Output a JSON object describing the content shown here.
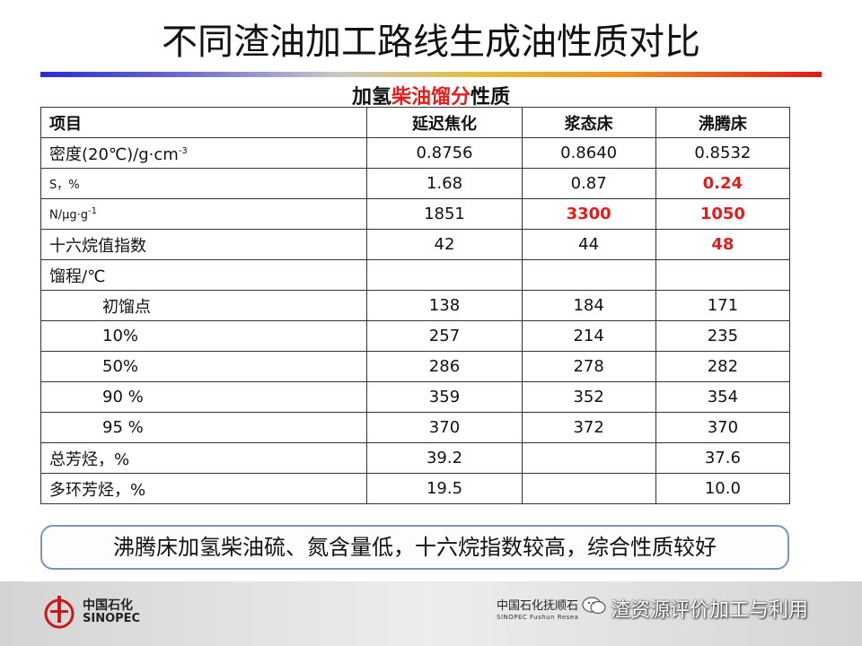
{
  "title": "不同渣油加工路线生成油性质对比",
  "subtitle": {
    "pre": "加氢",
    "highlight": "柴油馏分",
    "post": "性质"
  },
  "table": {
    "headers": [
      "项目",
      "延迟焦化",
      "浆态床",
      "沸腾床"
    ],
    "rows": [
      {
        "label": "密度(20℃)/g·cm",
        "sup": "-3",
        "values": [
          "0.8756",
          "0.8640",
          "0.8532"
        ],
        "highlight": [
          false,
          false,
          false
        ]
      },
      {
        "label": "S，%",
        "values": [
          "1.68",
          "0.87",
          "0.24"
        ],
        "highlight": [
          false,
          false,
          true
        ],
        "small": true
      },
      {
        "label": "N/μg·g",
        "sup": "-1",
        "values": [
          "1851",
          "3300",
          "1050"
        ],
        "highlight": [
          false,
          true,
          true
        ],
        "small": true
      },
      {
        "label": "十六烷值指数",
        "values": [
          "42",
          "44",
          "48"
        ],
        "highlight": [
          false,
          false,
          true
        ]
      },
      {
        "label": "馏程/℃",
        "values": [
          "",
          "",
          ""
        ],
        "highlight": [
          false,
          false,
          false
        ]
      },
      {
        "label": "初馏点",
        "indent": true,
        "values": [
          "138",
          "184",
          "171"
        ],
        "highlight": [
          false,
          false,
          false
        ]
      },
      {
        "label": "10%",
        "indent": true,
        "values": [
          "257",
          "214",
          "235"
        ],
        "highlight": [
          false,
          false,
          false
        ]
      },
      {
        "label": "50%",
        "indent": true,
        "values": [
          "286",
          "278",
          "282"
        ],
        "highlight": [
          false,
          false,
          false
        ]
      },
      {
        "label": "90 %",
        "indent": true,
        "values": [
          "359",
          "352",
          "354"
        ],
        "highlight": [
          false,
          false,
          false
        ]
      },
      {
        "label": "95 %",
        "indent": true,
        "values": [
          "370",
          "372",
          "370"
        ],
        "highlight": [
          false,
          false,
          false
        ]
      },
      {
        "label": "总芳烃，%",
        "values": [
          "39.2",
          "",
          "37.6"
        ],
        "highlight": [
          false,
          false,
          false
        ]
      },
      {
        "label": "多环芳烃，%",
        "values": [
          "19.5",
          "",
          "10.0"
        ],
        "highlight": [
          false,
          false,
          false
        ]
      }
    ]
  },
  "note": "沸腾床加氢柴油硫、氮含量低，十六烷指数较高，综合性质较好",
  "footer": {
    "brand_cn": "中国石化",
    "brand_en": "SINOPEC",
    "institute_cn": "中国石化抚顺石",
    "institute_en": "SINOPEC  Fushun Resea",
    "watermark": "渣资源评价加工与利用",
    "icons": [
      "sinopec-logo",
      "wechat-icon"
    ]
  },
  "colors": {
    "highlight": "#e41c1c",
    "note_border": "#7d93bc",
    "footer_bg": "#dcdcdc"
  }
}
